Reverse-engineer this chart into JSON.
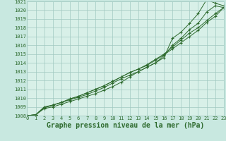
{
  "xlabel": "Graphe pression niveau de la mer (hPa)",
  "x": [
    0,
    1,
    2,
    3,
    4,
    5,
    6,
    7,
    8,
    9,
    10,
    11,
    12,
    13,
    14,
    15,
    16,
    17,
    18,
    19,
    20,
    21,
    22,
    23
  ],
  "series": [
    [
      1008.0,
      1008.1,
      1008.8,
      1009.0,
      1009.3,
      1009.6,
      1009.9,
      1010.2,
      1010.5,
      1010.9,
      1011.3,
      1011.8,
      1012.4,
      1013.0,
      1013.5,
      1014.0,
      1014.6,
      1016.8,
      1017.5,
      1018.5,
      1019.6,
      1021.2,
      1020.8,
      1020.5
    ],
    [
      1008.0,
      1008.1,
      1009.0,
      1009.2,
      1009.5,
      1009.8,
      1010.1,
      1010.4,
      1010.8,
      1011.2,
      1011.7,
      1012.2,
      1012.6,
      1013.0,
      1013.5,
      1014.0,
      1014.8,
      1016.0,
      1016.8,
      1017.8,
      1018.5,
      1019.8,
      1020.5,
      1020.3
    ],
    [
      1008.0,
      1008.1,
      1008.9,
      1009.2,
      1009.5,
      1009.9,
      1010.2,
      1010.6,
      1011.0,
      1011.4,
      1011.9,
      1012.4,
      1012.9,
      1013.3,
      1013.8,
      1014.4,
      1015.0,
      1015.8,
      1016.6,
      1017.4,
      1018.0,
      1018.8,
      1019.6,
      1020.3
    ],
    [
      1008.0,
      1008.1,
      1008.9,
      1009.2,
      1009.5,
      1009.9,
      1010.2,
      1010.6,
      1011.0,
      1011.4,
      1011.9,
      1012.4,
      1012.9,
      1013.3,
      1013.7,
      1014.3,
      1014.9,
      1015.6,
      1016.3,
      1017.0,
      1017.7,
      1018.6,
      1019.3,
      1020.3
    ]
  ],
  "line_color": "#2d6a2d",
  "marker_color": "#2d6a2d",
  "bg_color": "#c8e8e0",
  "grid_color": "#a0c8c0",
  "plot_bg": "#d8f0e8",
  "ylim": [
    1008,
    1021
  ],
  "xlim": [
    0,
    23
  ],
  "yticks": [
    1008,
    1009,
    1010,
    1011,
    1012,
    1013,
    1014,
    1015,
    1016,
    1017,
    1018,
    1019,
    1020,
    1021
  ],
  "xticks": [
    0,
    1,
    2,
    3,
    4,
    5,
    6,
    7,
    8,
    9,
    10,
    11,
    12,
    13,
    14,
    15,
    16,
    17,
    18,
    19,
    20,
    21,
    22,
    23
  ],
  "tick_fontsize": 5.0,
  "xlabel_fontsize": 7.0,
  "linewidth": 0.7,
  "markersize": 2.5
}
